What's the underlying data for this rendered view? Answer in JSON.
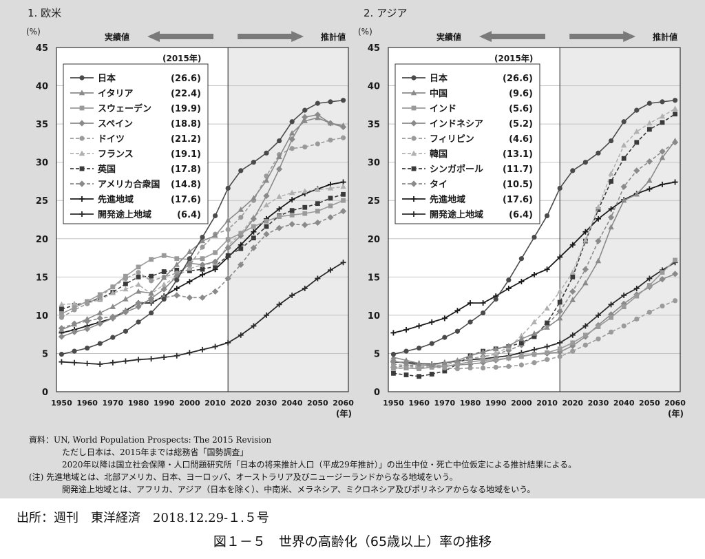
{
  "chart_data": [
    {
      "type": "line",
      "title": "1. 欧米",
      "ylabel": "(%)",
      "xlabel_unit": "(年)",
      "ylim": [
        0,
        45
      ],
      "yticks": [
        0,
        5,
        10,
        15,
        20,
        25,
        30,
        35,
        40,
        45
      ],
      "xticks": [
        1950,
        1960,
        1970,
        1980,
        1990,
        2000,
        2010,
        2020,
        2030,
        2040,
        2050,
        2060
      ],
      "x": [
        1950,
        1955,
        1960,
        1965,
        1970,
        1975,
        1980,
        1985,
        1990,
        1995,
        2000,
        2005,
        2010,
        2015,
        2020,
        2025,
        2030,
        2035,
        2040,
        2045,
        2050,
        2055,
        2060
      ],
      "divider_x": 2015,
      "actual_label": "実績値",
      "projection_label": "推計値",
      "legend_title": "(2015年)",
      "legend_position": "top-left",
      "series": [
        {
          "name": "日本",
          "value2015": "(26.6)",
          "color": "#4a4a4a",
          "dash": "solid",
          "marker": "circle",
          "values": [
            4.9,
            5.3,
            5.7,
            6.3,
            7.1,
            7.9,
            9.1,
            10.3,
            12.1,
            14.6,
            17.4,
            20.2,
            23.0,
            26.6,
            28.9,
            30.0,
            31.2,
            32.8,
            35.3,
            36.8,
            37.7,
            37.9,
            38.1
          ]
        },
        {
          "name": "イタリア",
          "value2015": "(22.4)",
          "color": "#8a8a8a",
          "dash": "solid",
          "marker": "triangle",
          "values": [
            8.1,
            8.8,
            9.5,
            10.3,
            11.1,
            12.1,
            13.1,
            12.9,
            14.9,
            16.6,
            18.3,
            19.7,
            20.4,
            22.4,
            23.8,
            25.3,
            27.6,
            30.7,
            33.8,
            35.4,
            35.8,
            35.1,
            34.8
          ]
        },
        {
          "name": "スウェーデン",
          "value2015": "(19.9)",
          "color": "#9a9a9a",
          "dash": "solid",
          "marker": "square",
          "values": [
            10.2,
            11.0,
            11.8,
            12.7,
            13.7,
            15.1,
            16.3,
            17.3,
            17.8,
            17.4,
            17.3,
            17.4,
            18.2,
            19.9,
            20.7,
            21.6,
            22.3,
            22.9,
            23.1,
            23.3,
            23.6,
            24.3,
            25.0
          ]
        },
        {
          "name": "スペイン",
          "value2015": "(18.8)",
          "color": "#8a8a8a",
          "dash": "solid",
          "marker": "diamond",
          "values": [
            7.2,
            7.8,
            8.2,
            8.9,
            9.6,
            10.4,
            11.1,
            12.2,
            13.4,
            15.1,
            16.8,
            16.6,
            17.0,
            18.8,
            20.4,
            22.6,
            25.6,
            29.1,
            33.0,
            35.9,
            36.2,
            35.1,
            34.6
          ]
        },
        {
          "name": "ドイツ",
          "value2015": "(21.2)",
          "color": "#9a9a9a",
          "dash": "dash",
          "marker": "circle",
          "values": [
            9.7,
            10.7,
            11.5,
            12.4,
            13.7,
            14.8,
            15.6,
            14.5,
            15.0,
            15.5,
            16.5,
            18.9,
            20.6,
            21.2,
            22.8,
            25.0,
            28.2,
            31.0,
            31.8,
            32.0,
            32.4,
            32.9,
            33.2
          ]
        },
        {
          "name": "フランス",
          "value2015": "(19.1)",
          "color": "#b0b0b0",
          "dash": "dash",
          "marker": "triangle",
          "values": [
            11.4,
            11.5,
            11.6,
            12.0,
            12.9,
            13.4,
            14.0,
            12.8,
            14.0,
            15.1,
            16.1,
            16.6,
            16.8,
            19.1,
            20.7,
            22.8,
            24.4,
            25.5,
            26.0,
            26.2,
            26.4,
            26.6,
            26.8
          ]
        },
        {
          "name": "英国",
          "value2015": "(17.8)",
          "color": "#3a3a3a",
          "dash": "dash",
          "marker": "square",
          "values": [
            10.8,
            11.3,
            11.7,
            12.2,
            13.0,
            14.1,
            15.0,
            15.1,
            15.7,
            15.9,
            15.8,
            16.0,
            16.4,
            17.8,
            18.7,
            20.1,
            21.6,
            23.0,
            23.7,
            24.1,
            24.6,
            25.3,
            25.8
          ]
        },
        {
          "name": "アメリカ合衆国",
          "value2015": "(14.8)",
          "color": "#8a8a8a",
          "dash": "dash",
          "marker": "diamond",
          "values": [
            8.3,
            8.9,
            9.2,
            9.6,
            9.8,
            10.5,
            11.6,
            11.9,
            12.3,
            12.6,
            12.3,
            12.3,
            13.1,
            14.8,
            16.6,
            18.8,
            20.6,
            21.4,
            21.9,
            21.8,
            22.1,
            22.8,
            23.6
          ]
        },
        {
          "name": "先進地域",
          "value2015": "(17.6)",
          "color": "#1a1a1a",
          "dash": "solid",
          "marker": "plus",
          "values": [
            7.7,
            8.1,
            8.6,
            9.1,
            9.6,
            10.6,
            11.6,
            11.6,
            12.5,
            13.5,
            14.4,
            15.3,
            16.0,
            17.6,
            19.2,
            20.9,
            22.6,
            23.9,
            25.1,
            25.9,
            26.5,
            27.1,
            27.4
          ]
        },
        {
          "name": "開発途上地域",
          "value2015": "(6.4)",
          "color": "#2a2a2a",
          "dash": "solid",
          "marker": "plus",
          "values": [
            3.9,
            3.8,
            3.7,
            3.6,
            3.8,
            4.0,
            4.2,
            4.3,
            4.5,
            4.7,
            5.1,
            5.5,
            5.9,
            6.4,
            7.4,
            8.6,
            10.0,
            11.4,
            12.6,
            13.5,
            14.8,
            15.9,
            16.9
          ]
        }
      ]
    },
    {
      "type": "line",
      "title": "2. アジア",
      "ylabel": "(%)",
      "xlabel_unit": "(年)",
      "ylim": [
        0,
        45
      ],
      "yticks": [
        0,
        5,
        10,
        15,
        20,
        25,
        30,
        35,
        40,
        45
      ],
      "xticks": [
        1950,
        1960,
        1970,
        1980,
        1990,
        2000,
        2010,
        2020,
        2030,
        2040,
        2050,
        2060
      ],
      "x": [
        1950,
        1955,
        1960,
        1965,
        1970,
        1975,
        1980,
        1985,
        1990,
        1995,
        2000,
        2005,
        2010,
        2015,
        2020,
        2025,
        2030,
        2035,
        2040,
        2045,
        2050,
        2055,
        2060
      ],
      "divider_x": 2015,
      "actual_label": "実績値",
      "projection_label": "推計値",
      "legend_title": "(2015年)",
      "legend_position": "top-left",
      "series": [
        {
          "name": "日本",
          "value2015": "(26.6)",
          "color": "#4a4a4a",
          "dash": "solid",
          "marker": "circle",
          "values": [
            4.9,
            5.3,
            5.7,
            6.3,
            7.1,
            7.9,
            9.1,
            10.3,
            12.1,
            14.6,
            17.4,
            20.2,
            23.0,
            26.6,
            28.9,
            30.0,
            31.2,
            32.8,
            35.3,
            36.8,
            37.7,
            37.9,
            38.1
          ]
        },
        {
          "name": "中国",
          "value2015": "(9.6)",
          "color": "#8a8a8a",
          "dash": "solid",
          "marker": "triangle",
          "values": [
            4.5,
            4.1,
            3.7,
            3.5,
            3.8,
            4.1,
            4.7,
            5.2,
            5.6,
            6.0,
            6.9,
            7.6,
            8.4,
            9.6,
            12.0,
            14.2,
            17.1,
            21.5,
            25.0,
            25.8,
            27.6,
            30.6,
            32.8
          ]
        },
        {
          "name": "インド",
          "value2015": "(5.6)",
          "color": "#9a9a9a",
          "dash": "solid",
          "marker": "square",
          "values": [
            3.1,
            3.1,
            3.0,
            3.2,
            3.3,
            3.6,
            3.9,
            4.1,
            4.2,
            4.4,
            4.6,
            4.9,
            5.1,
            5.6,
            6.4,
            7.4,
            8.5,
            9.7,
            11.1,
            12.5,
            13.9,
            15.6,
            17.2
          ]
        },
        {
          "name": "インドネシア",
          "value2015": "(5.2)",
          "color": "#8a8a8a",
          "dash": "solid",
          "marker": "diamond",
          "values": [
            4.0,
            3.7,
            3.5,
            3.4,
            3.3,
            3.5,
            3.6,
            3.8,
            4.1,
            4.4,
            4.7,
            4.9,
            5.0,
            5.2,
            6.0,
            7.2,
            8.7,
            10.1,
            11.5,
            12.7,
            13.7,
            14.7,
            15.4
          ]
        },
        {
          "name": "フィリピン",
          "value2015": "(4.6)",
          "color": "#9a9a9a",
          "dash": "dash",
          "marker": "circle",
          "values": [
            3.6,
            3.4,
            3.2,
            3.2,
            3.1,
            3.0,
            3.1,
            3.1,
            3.2,
            3.3,
            3.5,
            3.8,
            4.2,
            4.6,
            5.3,
            6.1,
            6.9,
            7.8,
            8.6,
            9.5,
            10.4,
            11.2,
            11.9
          ]
        },
        {
          "name": "韓国",
          "value2015": "(13.1)",
          "color": "#b0b0b0",
          "dash": "dash",
          "marker": "triangle",
          "values": [
            3.0,
            3.1,
            3.2,
            3.4,
            3.5,
            3.9,
            4.3,
            4.5,
            5.0,
            5.8,
            7.3,
            9.1,
            10.9,
            13.1,
            15.6,
            19.8,
            24.1,
            28.5,
            32.2,
            34.0,
            35.1,
            36.0,
            37.0
          ]
        },
        {
          "name": "シンガポール",
          "value2015": "(11.7)",
          "color": "#3a3a3a",
          "dash": "dash",
          "marker": "square",
          "values": [
            2.4,
            2.2,
            2.0,
            2.3,
            2.7,
            3.6,
            4.7,
            5.3,
            5.6,
            5.9,
            6.4,
            7.2,
            9.0,
            11.7,
            15.0,
            19.7,
            23.8,
            27.5,
            30.5,
            32.6,
            34.3,
            35.2,
            36.3
          ]
        },
        {
          "name": "タイ",
          "value2015": "(10.5)",
          "color": "#8a8a8a",
          "dash": "dash",
          "marker": "diamond",
          "values": [
            3.2,
            3.4,
            3.5,
            3.4,
            3.5,
            3.9,
            4.3,
            4.6,
            4.9,
            5.4,
            6.1,
            7.3,
            8.8,
            10.5,
            13.1,
            16.0,
            19.7,
            22.8,
            26.8,
            28.9,
            30.1,
            31.4,
            32.6
          ]
        },
        {
          "name": "先進地域",
          "value2015": "(17.6)",
          "color": "#1a1a1a",
          "dash": "solid",
          "marker": "plus",
          "values": [
            7.7,
            8.1,
            8.6,
            9.1,
            9.6,
            10.6,
            11.6,
            11.6,
            12.5,
            13.5,
            14.4,
            15.3,
            16.0,
            17.6,
            19.2,
            20.9,
            22.6,
            23.9,
            25.1,
            25.9,
            26.5,
            27.1,
            27.4
          ]
        },
        {
          "name": "開発途上地域",
          "value2015": "(6.4)",
          "color": "#2a2a2a",
          "dash": "solid",
          "marker": "plus",
          "values": [
            3.9,
            3.8,
            3.7,
            3.6,
            3.8,
            4.0,
            4.2,
            4.3,
            4.5,
            4.7,
            5.1,
            5.5,
            5.9,
            6.4,
            7.4,
            8.6,
            10.0,
            11.4,
            12.6,
            13.5,
            14.8,
            15.9,
            16.9
          ]
        }
      ]
    }
  ],
  "notes": {
    "line1": "資料：UN, World Population Prospects: The 2015 Revision",
    "line2": "ただし日本は、2015年までは総務省「国勢調査」",
    "line3": "2020年以降は国立社会保障・人口問題研究所「日本の将来推計人口（平成29年推計）」の出生中位・死亡中位仮定による推計結果による。",
    "line4": "(注) 先進地域とは、北部アメリカ、日本、ヨーロッパ、オーストラリア及びニュージーランドからなる地域をいう。",
    "line5": "開発途上地域とは、アフリカ、アジア（日本を除く）、中南米、メラネシア、ミクロネシア及びポリネシアからなる地域をいう。"
  },
  "source": "出所：週刊　東洋経済　2018.12.29-１.５号",
  "caption": "図１－５　世界の高齢化（65歳以上）率の推移"
}
